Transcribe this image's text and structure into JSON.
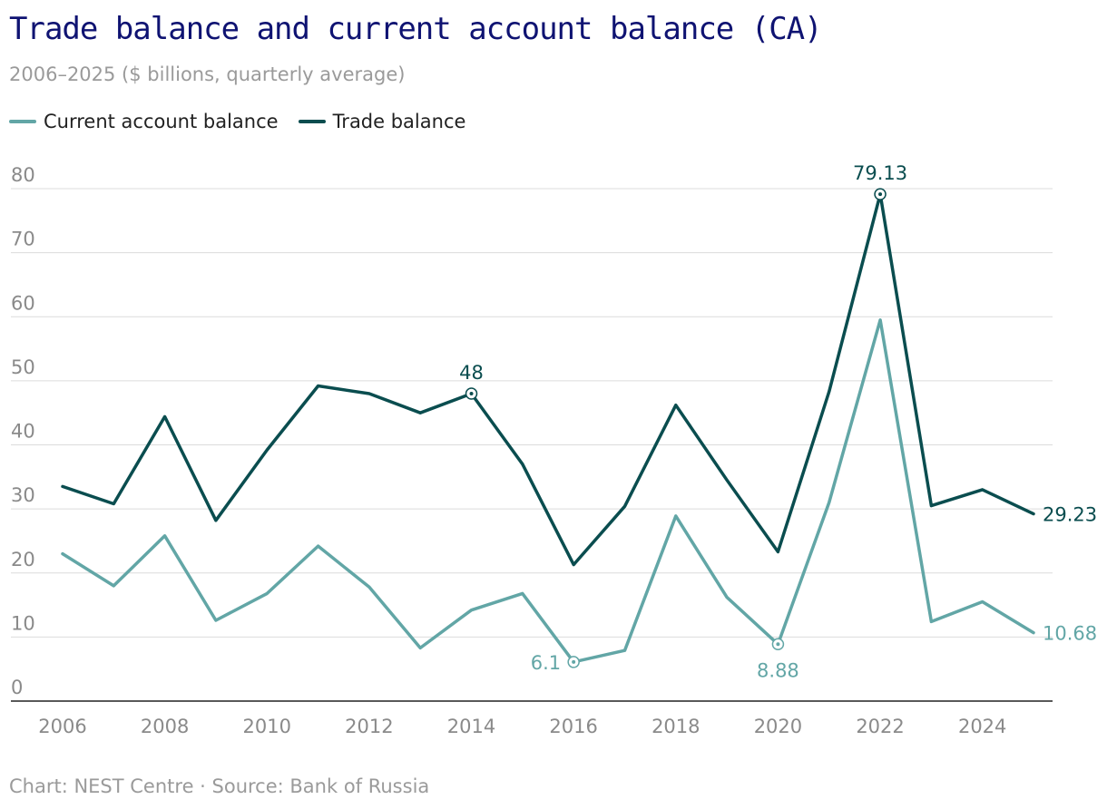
{
  "title": "Trade balance and current account balance (CA)",
  "subtitle": "2006–2025 ($ billions, quarterly average)",
  "source": "Chart: NEST Centre · Source: Bank of Russia",
  "colors": {
    "current_account": "#62a6a6",
    "trade": "#0a4d4f",
    "title": "#0f1372"
  },
  "chart_data": {
    "type": "line",
    "title": "Trade balance and current account balance (CA)",
    "xlabel": "",
    "ylabel": "$ billions",
    "ylim": [
      0,
      80
    ],
    "yticks": [
      0,
      10,
      20,
      30,
      40,
      50,
      60,
      70,
      80
    ],
    "xticks": [
      2006,
      2008,
      2010,
      2012,
      2014,
      2016,
      2018,
      2020,
      2022,
      2024
    ],
    "x": [
      2006,
      2007,
      2008,
      2009,
      2010,
      2011,
      2012,
      2013,
      2014,
      2015,
      2016,
      2017,
      2018,
      2019,
      2020,
      2021,
      2022,
      2023,
      2024,
      2025
    ],
    "legend_position": "top-left",
    "series": [
      {
        "name": "Current account balance",
        "key": "current_account",
        "values": [
          23.0,
          18.0,
          25.8,
          12.6,
          16.8,
          24.2,
          17.8,
          8.3,
          14.2,
          16.8,
          6.1,
          7.9,
          28.9,
          16.2,
          8.88,
          31.0,
          59.5,
          12.4,
          15.5,
          10.68
        ]
      },
      {
        "name": "Trade balance",
        "key": "trade",
        "values": [
          33.5,
          30.8,
          44.4,
          28.2,
          39.2,
          49.2,
          48.0,
          45.0,
          48.0,
          37.0,
          21.3,
          30.4,
          46.2,
          34.5,
          23.3,
          48.3,
          79.13,
          30.5,
          33.0,
          29.23
        ]
      }
    ],
    "annotations": [
      {
        "series": "trade",
        "x": 2014,
        "label": "48",
        "marker": true
      },
      {
        "series": "trade",
        "x": 2022,
        "label": "79.13",
        "marker": true
      },
      {
        "series": "trade",
        "x": 2025,
        "label": "29.23",
        "marker": false
      },
      {
        "series": "current_account",
        "x": 2016,
        "label": "6.1",
        "marker": true
      },
      {
        "series": "current_account",
        "x": 2020,
        "label": "8.88",
        "marker": true
      },
      {
        "series": "current_account",
        "x": 2025,
        "label": "10.68",
        "marker": false
      }
    ]
  }
}
